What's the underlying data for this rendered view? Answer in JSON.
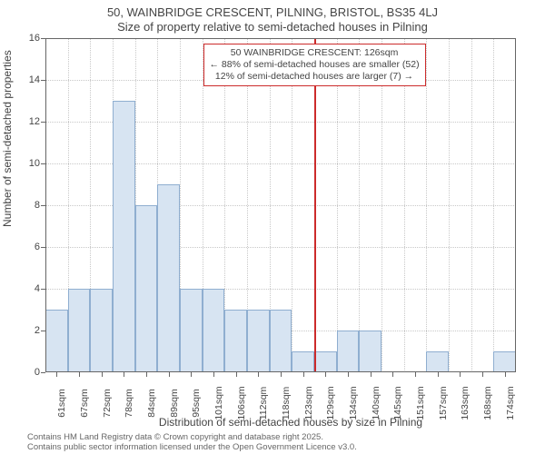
{
  "title_line1": "50, WAINBRIDGE CRESCENT, PILNING, BRISTOL, BS35 4LJ",
  "title_line2": "Size of property relative to semi-detached houses in Pilning",
  "yaxis_label": "Number of semi-detached properties",
  "xaxis_label": "Distribution of semi-detached houses by size in Pilning",
  "footer_line1": "Contains HM Land Registry data © Crown copyright and database right 2025.",
  "footer_line2": "Contains public sector information licensed under the Open Government Licence v3.0.",
  "chart": {
    "type": "histogram",
    "background_color": "#ffffff",
    "grid_color": "#c8c8c8",
    "axis_color": "#666666",
    "bar_fill": "#d7e4f2",
    "bar_border": "#8faed0",
    "marker_color": "#cc2b2b",
    "callout_border": "#cc2b2b",
    "ylim": [
      0,
      16
    ],
    "ytick_step": 2,
    "yticks": [
      0,
      2,
      4,
      6,
      8,
      10,
      12,
      14,
      16
    ],
    "xticks_labels": [
      "61sqm",
      "67sqm",
      "72sqm",
      "78sqm",
      "84sqm",
      "89sqm",
      "95sqm",
      "101sqm",
      "106sqm",
      "112sqm",
      "118sqm",
      "123sqm",
      "129sqm",
      "134sqm",
      "140sqm",
      "145sqm",
      "151sqm",
      "157sqm",
      "163sqm",
      "168sqm",
      "174sqm"
    ],
    "values": [
      3,
      4,
      4,
      13,
      8,
      9,
      4,
      4,
      3,
      3,
      3,
      1,
      1,
      2,
      2,
      0,
      0,
      1,
      0,
      0,
      1
    ],
    "bar_width_ratio": 1.0,
    "marker_position_index": 12.0,
    "callout": {
      "line1": "50 WAINBRIDGE CRESCENT: 126sqm",
      "line2": "← 88% of semi-detached houses are smaller (52)",
      "line3": "12% of semi-detached houses are larger (7) →"
    },
    "title_fontsize": 13,
    "label_fontsize": 12,
    "tick_fontsize": 11,
    "footer_fontsize": 9.5
  }
}
